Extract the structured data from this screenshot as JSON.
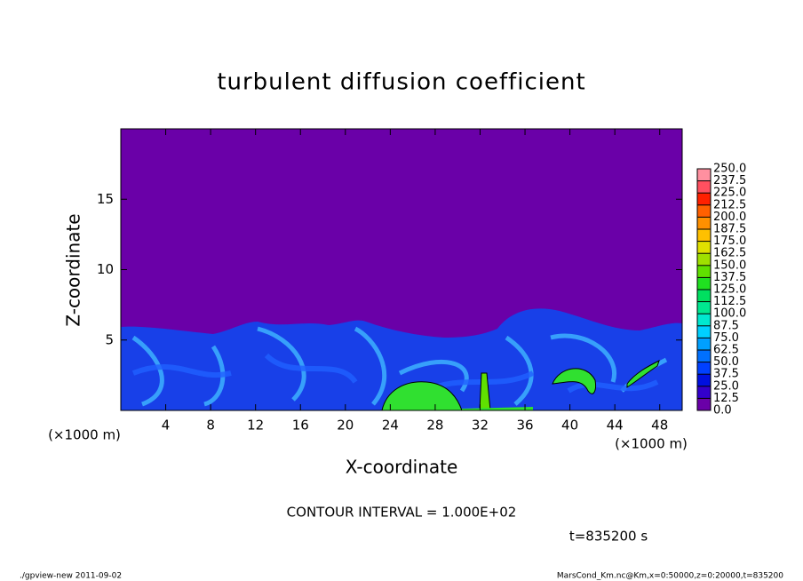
{
  "chart_data": {
    "type": "heatmap",
    "title": "turbulent diffusion coefficient",
    "x_label": "X-coordinate",
    "y_label": "Z-coordinate",
    "x_unit": "(×1000 m)",
    "xlim": [
      0,
      50
    ],
    "ylim": [
      0,
      20
    ],
    "xticks": [
      4,
      8,
      12,
      16,
      20,
      24,
      28,
      32,
      36,
      40,
      44,
      48
    ],
    "yticks": [
      5,
      10,
      15
    ],
    "colorbar": {
      "ticks": [
        {
          "value": 0,
          "label": "0.0"
        },
        12.5,
        {
          "value": 25,
          "label": "25.0"
        },
        37.5,
        {
          "value": 50,
          "label": "50.0"
        },
        62.5,
        {
          "value": 75,
          "label": "75.0"
        },
        87.5,
        {
          "value": 100,
          "label": "100.0"
        },
        112.5,
        {
          "value": 125,
          "label": "125.0"
        },
        137.5,
        {
          "value": 150,
          "label": "150.0"
        },
        162.5,
        {
          "value": 175,
          "label": "175.0"
        },
        187.5,
        {
          "value": 200,
          "label": "200.0"
        },
        212.5,
        {
          "value": 225,
          "label": "225.0"
        },
        237.5,
        {
          "value": 250,
          "label": "250.0"
        }
      ],
      "colors": [
        "#6a00a8",
        "#3300cc",
        "#0010e0",
        "#0040ff",
        "#0070ff",
        "#00a0ff",
        "#00d0ff",
        "#00e8d0",
        "#00e890",
        "#00e060",
        "#20e020",
        "#60e000",
        "#a0e000",
        "#e0e000",
        "#ffc000",
        "#ff9000",
        "#ff6000",
        "#ff2000",
        "#ff5060",
        "#ff90a0"
      ]
    },
    "contour_note": "CONTOUR INTERVAL = 1.000E+02",
    "time_note": "t=835200 s",
    "footer_left": "./gpview-new  2011-09-02",
    "footer_right": "MarsCond_Km.nc@Km,x=0:50000,z=0:20000,t=835200"
  }
}
